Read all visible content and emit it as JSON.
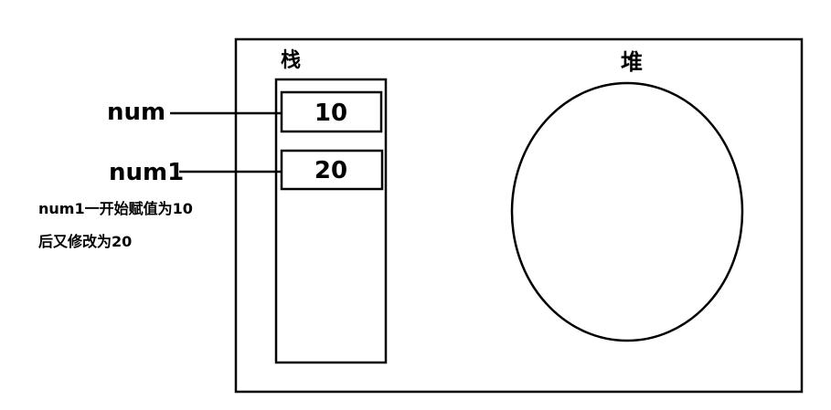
{
  "memory": {
    "stack_label": "栈",
    "heap_label": "堆"
  },
  "variables": [
    {
      "name": "num",
      "value": "10"
    },
    {
      "name": "num1",
      "value": "20"
    }
  ],
  "note": {
    "line1": "num1一开始赋值为10",
    "line2": "后又修改为20"
  },
  "colors": {
    "stroke": "#000000",
    "background": "#ffffff"
  }
}
